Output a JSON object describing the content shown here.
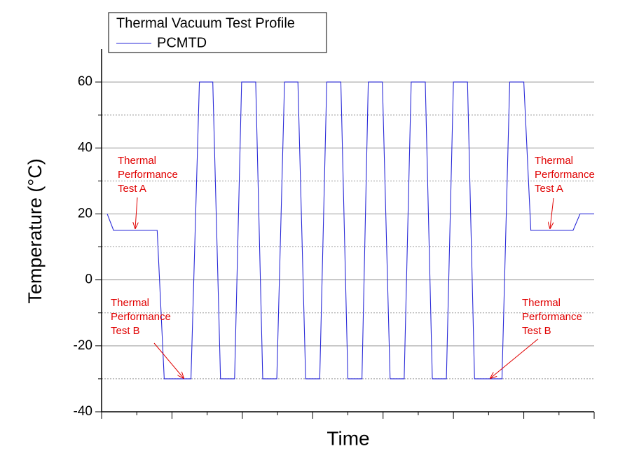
{
  "chart_data": {
    "type": "line",
    "legend_title": "Thermal Vacuum Test Profile",
    "xlabel": "Time",
    "ylabel": "Temperature (°C)",
    "x": [
      0.08,
      0.17,
      0.79,
      0.89,
      1.27,
      1.39,
      1.58,
      1.69,
      1.89,
      1.99,
      2.19,
      2.29,
      2.49,
      2.6,
      2.79,
      2.9,
      3.1,
      3.2,
      3.4,
      3.5,
      3.7,
      3.79,
      3.99,
      4.1,
      4.3,
      4.4,
      4.6,
      4.7,
      4.9,
      5.0,
      5.2,
      5.3,
      5.69,
      5.8,
      6.0,
      6.1,
      6.7,
      6.8,
      7.0
    ],
    "series": [
      {
        "name": "PCMTD",
        "color": "#2a2ad8",
        "values": [
          20,
          15,
          15,
          -30,
          -30,
          60,
          60,
          -30,
          -30,
          60,
          60,
          -30,
          -30,
          60,
          60,
          -30,
          -30,
          60,
          60,
          -30,
          -30,
          60,
          60,
          -30,
          -30,
          60,
          60,
          -30,
          -30,
          60,
          60,
          -30,
          -30,
          60,
          60,
          15,
          15,
          20,
          20
        ]
      }
    ],
    "xlim": [
      0,
      7
    ],
    "xticks": [
      0,
      0.5,
      1,
      1.5,
      2,
      2.5,
      3,
      3.5,
      4,
      4.5,
      5,
      5.5,
      6,
      6.5,
      7
    ],
    "ylim": [
      -40,
      70
    ],
    "yticks": [
      -40,
      -20,
      0,
      20,
      40,
      60
    ],
    "yminorticks": [
      -30,
      -10,
      10,
      30,
      50
    ],
    "grid": true,
    "annotation_color": "#e00000",
    "annotations": [
      {
        "lines": [
          "Thermal",
          "Performance",
          "Test A"
        ]
      },
      {
        "lines": [
          "Thermal",
          "Performance",
          "Test B"
        ]
      },
      {
        "lines": [
          "Thermal",
          "Performance",
          "Test B"
        ]
      },
      {
        "lines": [
          "Thermal",
          "Performance",
          "Test A"
        ]
      }
    ]
  }
}
